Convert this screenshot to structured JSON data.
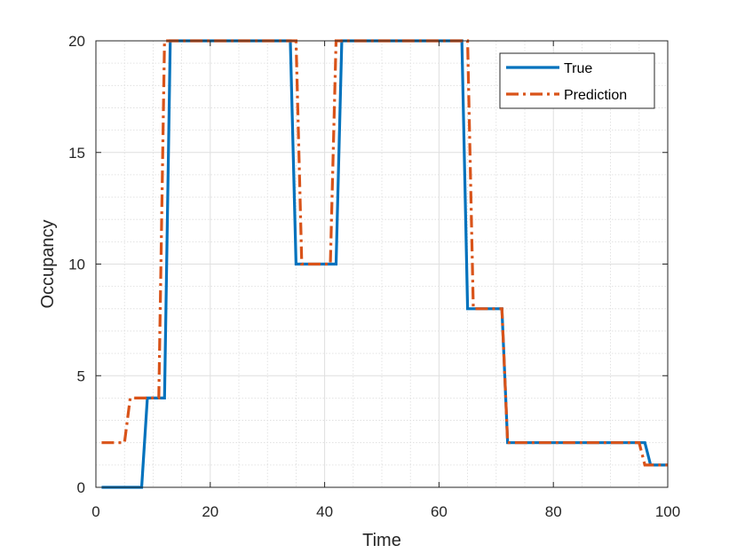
{
  "chart_data": {
    "type": "line",
    "title": "",
    "xlabel": "Time",
    "ylabel": "Occupancy",
    "xlim": [
      0,
      100
    ],
    "ylim": [
      0,
      20
    ],
    "xticks": [
      0,
      20,
      40,
      60,
      80,
      100
    ],
    "yticks": [
      0,
      5,
      10,
      15,
      20
    ],
    "grid": true,
    "minor_grid": true,
    "legend_position": "top-right",
    "series": [
      {
        "name": "True",
        "color": "#0072BD",
        "style": "solid",
        "points": [
          [
            1,
            0
          ],
          [
            8,
            0
          ],
          [
            9,
            4
          ],
          [
            12,
            4
          ],
          [
            13,
            20
          ],
          [
            34,
            20
          ],
          [
            35,
            10
          ],
          [
            42,
            10
          ],
          [
            43,
            20
          ],
          [
            64,
            20
          ],
          [
            65,
            8
          ],
          [
            71,
            8
          ],
          [
            72,
            2
          ],
          [
            96,
            2
          ],
          [
            97,
            1
          ],
          [
            100,
            1
          ]
        ]
      },
      {
        "name": "Prediction",
        "color": "#D95319",
        "style": "dashdot",
        "points": [
          [
            1,
            2
          ],
          [
            5,
            2
          ],
          [
            6,
            4
          ],
          [
            11,
            4
          ],
          [
            12,
            20
          ],
          [
            35,
            20
          ],
          [
            36,
            10
          ],
          [
            41,
            10
          ],
          [
            42,
            20
          ],
          [
            65,
            20
          ],
          [
            66,
            8
          ],
          [
            71,
            8
          ],
          [
            72,
            2
          ],
          [
            95,
            2
          ],
          [
            96,
            1
          ],
          [
            100,
            1
          ]
        ]
      }
    ]
  }
}
